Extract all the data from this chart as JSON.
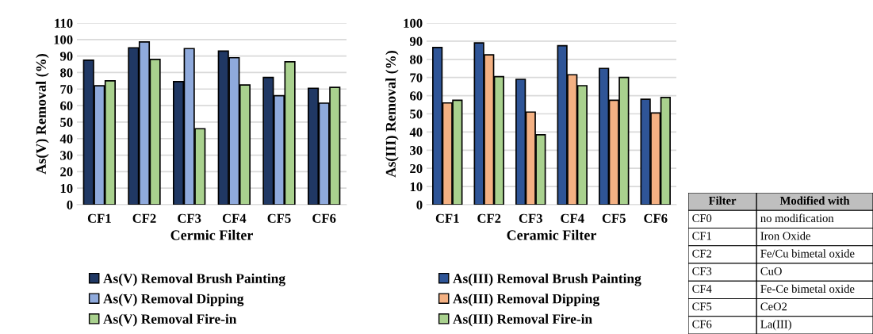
{
  "chart_data": [
    {
      "type": "bar",
      "xlabel": "Cermic Filter",
      "ylabel": "As(V) Removal (%)",
      "categories": [
        "CF1",
        "CF2",
        "CF3",
        "CF4",
        "CF5",
        "CF6"
      ],
      "series": [
        {
          "name": "As(V) Removal Brush Painting",
          "color": "#203864",
          "values": [
            87.5,
            95,
            74.5,
            93,
            77,
            70.5
          ]
        },
        {
          "name": "As(V) Removal Dipping",
          "color": "#8faadc",
          "values": [
            72,
            98.5,
            94.5,
            89,
            66,
            61.5
          ]
        },
        {
          "name": "As(V) Removal Fire-in",
          "color": "#a9d18e",
          "values": [
            75,
            88,
            46,
            72.5,
            86.5,
            71
          ]
        }
      ],
      "ylim": [
        0,
        110
      ],
      "yticks": [
        0,
        10,
        20,
        30,
        40,
        50,
        60,
        70,
        80,
        90,
        100,
        110
      ],
      "grid": "y",
      "legend": "bottom"
    },
    {
      "type": "bar",
      "xlabel": "Ceramic Filter",
      "ylabel": "As(III) Removal (%)",
      "categories": [
        "CF1",
        "CF2",
        "CF3",
        "CF4",
        "CF5",
        "CF6"
      ],
      "series": [
        {
          "name": "As(III) Removal Brush Painting",
          "color": "#2f5597",
          "values": [
            86.5,
            89,
            69,
            87.5,
            75,
            58
          ]
        },
        {
          "name": "As(III) Removal Dipping",
          "color": "#f4b183",
          "values": [
            56,
            82.5,
            51,
            71.5,
            57.5,
            50.5
          ]
        },
        {
          "name": "As(III) Removal Fire-in",
          "color": "#a9d18e",
          "values": [
            57.5,
            70.5,
            38.5,
            65.5,
            70,
            59
          ]
        }
      ],
      "ylim": [
        0,
        100
      ],
      "yticks": [
        0,
        10,
        20,
        30,
        40,
        50,
        60,
        70,
        80,
        90,
        100
      ],
      "grid": "y",
      "legend": "bottom"
    },
    {
      "type": "other",
      "annotations": [
        "Filter",
        "Modified with",
        "CF0",
        "no modification",
        "CF1",
        "Iron Oxide",
        "CF2",
        "Fe/Cu bimetal oxide",
        "CF3",
        "CuO",
        "CF4",
        "Fe-Ce bimetal oxide",
        "CF5",
        "CeO2",
        "CF6",
        "La(III)"
      ]
    }
  ]
}
